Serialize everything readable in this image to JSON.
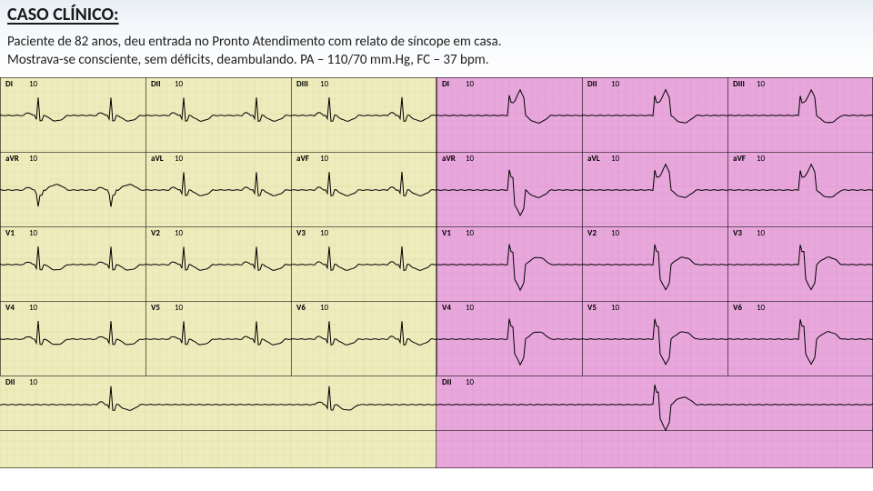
{
  "header": {
    "title": "CASO CLÍNICO:"
  },
  "body": {
    "line1": "Paciente de 82 anos, deu entrada no Pronto Atendimento com relato de síncope em casa.",
    "line2": "Mostrava-se consciente, sem déficits, deambulando. PA – 110/70 mm.Hg, FC – 37 bpm."
  },
  "ecg": {
    "panels": [
      {
        "side": "left",
        "bg": "#eeecbd",
        "fine_grid_color": "#c8b878",
        "rows": [
          0,
          82,
          164,
          246,
          328,
          388
        ],
        "cols": [
          0,
          160,
          320
        ],
        "leads": [
          {
            "row": 0,
            "labels": [
              "DI",
              "DII",
              "DIII"
            ],
            "gain": "10"
          },
          {
            "row": 1,
            "labels": [
              "aVR",
              "aVL",
              "aVF"
            ],
            "gain": "10"
          },
          {
            "row": 2,
            "labels": [
              "V1",
              "V2",
              "V3"
            ],
            "gain": "10"
          },
          {
            "row": 3,
            "labels": [
              "V4",
              "V5",
              "V6"
            ],
            "gain": "10"
          },
          {
            "row": 4,
            "labels": [
              "DII"
            ],
            "gain": "10",
            "full": true
          }
        ],
        "trace_baselines": [
          42,
          124,
          206,
          288,
          360
        ],
        "trace_style": "normal"
      },
      {
        "side": "right",
        "bg": "#e8a8dc",
        "fine_grid_color": "#d070c0",
        "rows": [
          0,
          82,
          164,
          246,
          328,
          388
        ],
        "cols": [
          0,
          160,
          320
        ],
        "leads": [
          {
            "row": 0,
            "labels": [
              "DI",
              "DII",
              "DIII"
            ],
            "gain": "10"
          },
          {
            "row": 1,
            "labels": [
              "aVR",
              "aVL",
              "aVF"
            ],
            "gain": "10"
          },
          {
            "row": 2,
            "labels": [
              "V1",
              "V2",
              "V3"
            ],
            "gain": "10"
          },
          {
            "row": 3,
            "labels": [
              "V4",
              "V5",
              "V6"
            ],
            "gain": "10"
          },
          {
            "row": 4,
            "labels": [
              "DII"
            ],
            "gain": "10",
            "full": true
          }
        ],
        "trace_baselines": [
          42,
          124,
          206,
          288,
          360
        ],
        "trace_style": "paced"
      }
    ],
    "colors": {
      "trace": "#000000",
      "heavy_grid": "rgba(0,0,0,0.55)"
    },
    "fontsize": {
      "lead_label": 9
    }
  }
}
